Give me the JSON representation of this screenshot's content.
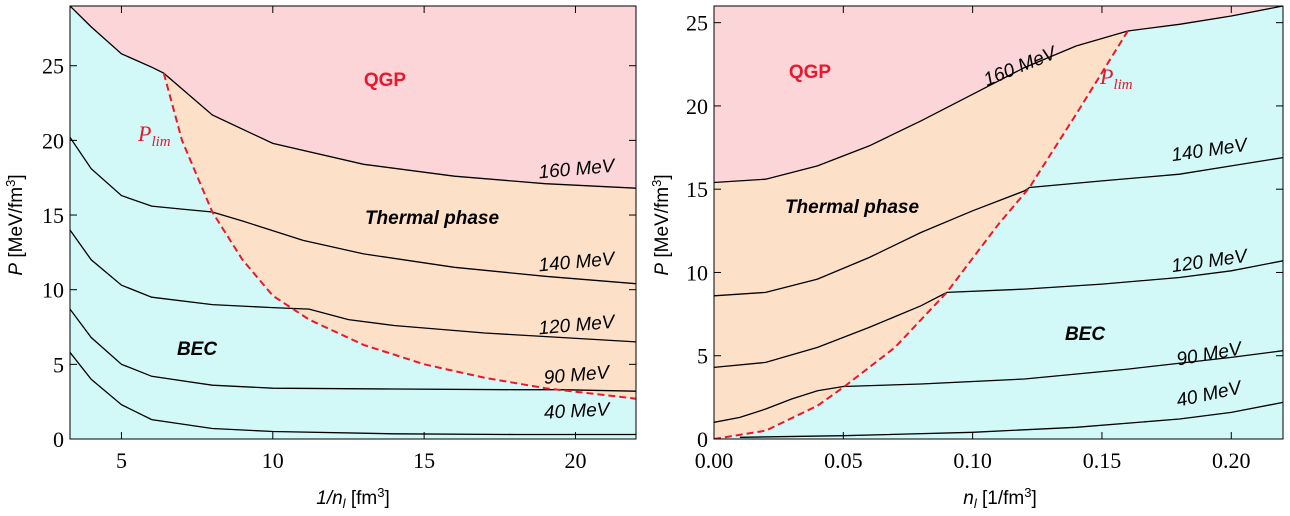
{
  "chart_data": [
    {
      "type": "area",
      "xlabel": "1/n_l [fm³]",
      "ylabel": "P [MeV/fm³]",
      "xlim": [
        3.3,
        22
      ],
      "ylim": [
        0,
        29
      ],
      "xticks": [
        "5",
        "10",
        "15",
        "20"
      ],
      "yticks": [
        "0",
        "5",
        "10",
        "15",
        "20",
        "25"
      ],
      "regions": [
        {
          "label": "QGP",
          "color": "#fcd5d8"
        },
        {
          "label": "Thermal phase",
          "color": "#fde0c8"
        },
        {
          "label": "BEC",
          "color": "#d2f8f8"
        }
      ],
      "limit_curve": {
        "label": "P_lim",
        "color": "#e8192c",
        "points": [
          [
            6.4,
            24.5
          ],
          [
            7,
            20
          ],
          [
            8,
            15.2
          ],
          [
            9,
            12.0
          ],
          [
            10,
            9.6
          ],
          [
            11.2,
            8.0
          ],
          [
            13,
            6.3
          ],
          [
            15,
            5.0
          ],
          [
            17,
            4.1
          ],
          [
            19,
            3.4
          ],
          [
            22,
            2.7
          ]
        ]
      },
      "series": [
        {
          "name": "160 MeV",
          "points": [
            [
              3.3,
              29
            ],
            [
              4,
              27.6
            ],
            [
              5,
              25.8
            ],
            [
              6,
              24.9
            ],
            [
              6.4,
              24.5
            ],
            [
              8,
              21.7
            ],
            [
              10,
              19.8
            ],
            [
              13,
              18.4
            ],
            [
              16,
              17.6
            ],
            [
              19,
              17.1
            ],
            [
              22,
              16.8
            ]
          ]
        },
        {
          "name": "140 MeV",
          "points": [
            [
              3.3,
              20.2
            ],
            [
              4,
              18.1
            ],
            [
              5,
              16.3
            ],
            [
              6,
              15.6
            ],
            [
              7,
              15.4
            ],
            [
              8,
              15.2
            ],
            [
              9,
              14.6
            ],
            [
              11,
              13.3
            ],
            [
              13,
              12.4
            ],
            [
              16,
              11.5
            ],
            [
              19,
              10.9
            ],
            [
              22,
              10.4
            ]
          ]
        },
        {
          "name": "120 MeV",
          "points": [
            [
              3.3,
              14.0
            ],
            [
              4,
              12.0
            ],
            [
              5,
              10.3
            ],
            [
              6,
              9.5
            ],
            [
              8,
              9.0
            ],
            [
              10,
              8.8
            ],
            [
              11.2,
              8.7
            ],
            [
              12.5,
              8.0
            ],
            [
              14,
              7.6
            ],
            [
              17,
              7.1
            ],
            [
              22,
              6.5
            ]
          ]
        },
        {
          "name": "90 MeV",
          "points": [
            [
              3.3,
              8.7
            ],
            [
              4,
              6.8
            ],
            [
              5,
              5.0
            ],
            [
              6,
              4.2
            ],
            [
              8,
              3.6
            ],
            [
              10,
              3.4
            ],
            [
              14,
              3.35
            ],
            [
              18,
              3.3
            ],
            [
              19.5,
              3.3
            ],
            [
              22,
              3.2
            ]
          ]
        },
        {
          "name": "40 MeV",
          "points": [
            [
              3.3,
              5.8
            ],
            [
              4,
              4.0
            ],
            [
              5,
              2.3
            ],
            [
              6,
              1.3
            ],
            [
              8,
              0.7
            ],
            [
              10,
              0.5
            ],
            [
              14,
              0.35
            ],
            [
              18,
              0.3
            ],
            [
              22,
              0.3
            ]
          ]
        }
      ],
      "annotations": [
        "QGP",
        "Thermal phase",
        "BEC",
        "P_lim"
      ]
    },
    {
      "type": "area",
      "xlabel": "n_l [1/fm³]",
      "ylabel": "P [MeV/fm³]",
      "xlim": [
        0,
        0.22
      ],
      "ylim": [
        0,
        26
      ],
      "xticks": [
        "0.00",
        "0.05",
        "0.10",
        "0.15",
        "0.20"
      ],
      "yticks": [
        "0",
        "5",
        "10",
        "15",
        "20",
        "25"
      ],
      "regions": [
        {
          "label": "QGP",
          "color": "#fcd5d8"
        },
        {
          "label": "Thermal phase",
          "color": "#fde0c8"
        },
        {
          "label": "BEC",
          "color": "#d2f8f8"
        }
      ],
      "limit_curve": {
        "label": "P_lim",
        "color": "#e8192c",
        "points": [
          [
            0,
            0
          ],
          [
            0.02,
            0.5
          ],
          [
            0.04,
            2.0
          ],
          [
            0.05,
            3.1
          ],
          [
            0.07,
            5.5
          ],
          [
            0.09,
            8.8
          ],
          [
            0.11,
            12.9
          ],
          [
            0.122,
            15.1
          ],
          [
            0.14,
            19.5
          ],
          [
            0.16,
            24.5
          ]
        ]
      },
      "series": [
        {
          "name": "160 MeV",
          "points": [
            [
              0,
              15.4
            ],
            [
              0.02,
              15.6
            ],
            [
              0.04,
              16.4
            ],
            [
              0.06,
              17.6
            ],
            [
              0.08,
              19.1
            ],
            [
              0.1,
              20.7
            ],
            [
              0.12,
              22.3
            ],
            [
              0.14,
              23.6
            ],
            [
              0.16,
              24.5
            ],
            [
              0.18,
              24.9
            ],
            [
              0.2,
              25.4
            ],
            [
              0.22,
              26.0
            ]
          ]
        },
        {
          "name": "140 MeV",
          "points": [
            [
              0,
              8.6
            ],
            [
              0.02,
              8.8
            ],
            [
              0.04,
              9.6
            ],
            [
              0.06,
              10.9
            ],
            [
              0.08,
              12.4
            ],
            [
              0.1,
              13.7
            ],
            [
              0.12,
              14.9
            ],
            [
              0.122,
              15.1
            ],
            [
              0.15,
              15.5
            ],
            [
              0.18,
              15.9
            ],
            [
              0.2,
              16.4
            ],
            [
              0.22,
              16.9
            ]
          ]
        },
        {
          "name": "120 MeV",
          "points": [
            [
              0,
              4.3
            ],
            [
              0.02,
              4.6
            ],
            [
              0.04,
              5.5
            ],
            [
              0.06,
              6.7
            ],
            [
              0.08,
              8.0
            ],
            [
              0.09,
              8.8
            ],
            [
              0.12,
              9.0
            ],
            [
              0.15,
              9.3
            ],
            [
              0.18,
              9.7
            ],
            [
              0.2,
              10.1
            ],
            [
              0.22,
              10.7
            ]
          ]
        },
        {
          "name": "90 MeV",
          "points": [
            [
              0,
              1.0
            ],
            [
              0.01,
              1.3
            ],
            [
              0.02,
              1.8
            ],
            [
              0.03,
              2.4
            ],
            [
              0.04,
              2.9
            ],
            [
              0.05,
              3.15
            ],
            [
              0.08,
              3.3
            ],
            [
              0.12,
              3.6
            ],
            [
              0.16,
              4.2
            ],
            [
              0.2,
              4.9
            ],
            [
              0.22,
              5.3
            ]
          ]
        },
        {
          "name": "40 MeV",
          "points": [
            [
              0.01,
              0.1
            ],
            [
              0.05,
              0.2
            ],
            [
              0.1,
              0.4
            ],
            [
              0.14,
              0.7
            ],
            [
              0.18,
              1.2
            ],
            [
              0.2,
              1.6
            ],
            [
              0.22,
              2.2
            ]
          ]
        }
      ],
      "annotations": [
        "QGP",
        "Thermal phase",
        "BEC",
        "P_lim"
      ]
    }
  ],
  "labels": {
    "left": {
      "qgp": "QGP",
      "thermal": "Thermal phase",
      "bec": "BEC",
      "plim_main": "P",
      "plim_sub": "lim",
      "xlabel_pre": "1/n",
      "xlabel_sub": "l",
      "xlabel_post": " [fm",
      "xlabel_sup": "3",
      "xlabel_end": "]",
      "ylabel_pre": "P",
      "ylabel_mid": " [MeV/fm",
      "ylabel_sup": "3",
      "ylabel_end": "]",
      "series": [
        "160 MeV",
        "140 MeV",
        "120 MeV",
        "90 MeV",
        "40 MeV"
      ],
      "xticks": [
        "5",
        "10",
        "15",
        "20"
      ],
      "yticks": [
        "0",
        "5",
        "10",
        "15",
        "20",
        "25"
      ]
    },
    "right": {
      "qgp": "QGP",
      "thermal": "Thermal phase",
      "bec": "BEC",
      "plim_main": "P",
      "plim_sub": "lim",
      "xlabel_pre": "n",
      "xlabel_sub": "l",
      "xlabel_post": " [1/fm",
      "xlabel_sup": "3",
      "xlabel_end": "]",
      "ylabel_pre": "P",
      "ylabel_mid": " [MeV/fm",
      "ylabel_sup": "3",
      "ylabel_end": "]",
      "series": [
        "160 MeV",
        "140 MeV",
        "120 MeV",
        "90 MeV",
        "40 MeV"
      ],
      "xticks": [
        "0.00",
        "0.05",
        "0.10",
        "0.15",
        "0.20"
      ],
      "yticks": [
        "0",
        "5",
        "10",
        "15",
        "20",
        "25"
      ]
    }
  }
}
